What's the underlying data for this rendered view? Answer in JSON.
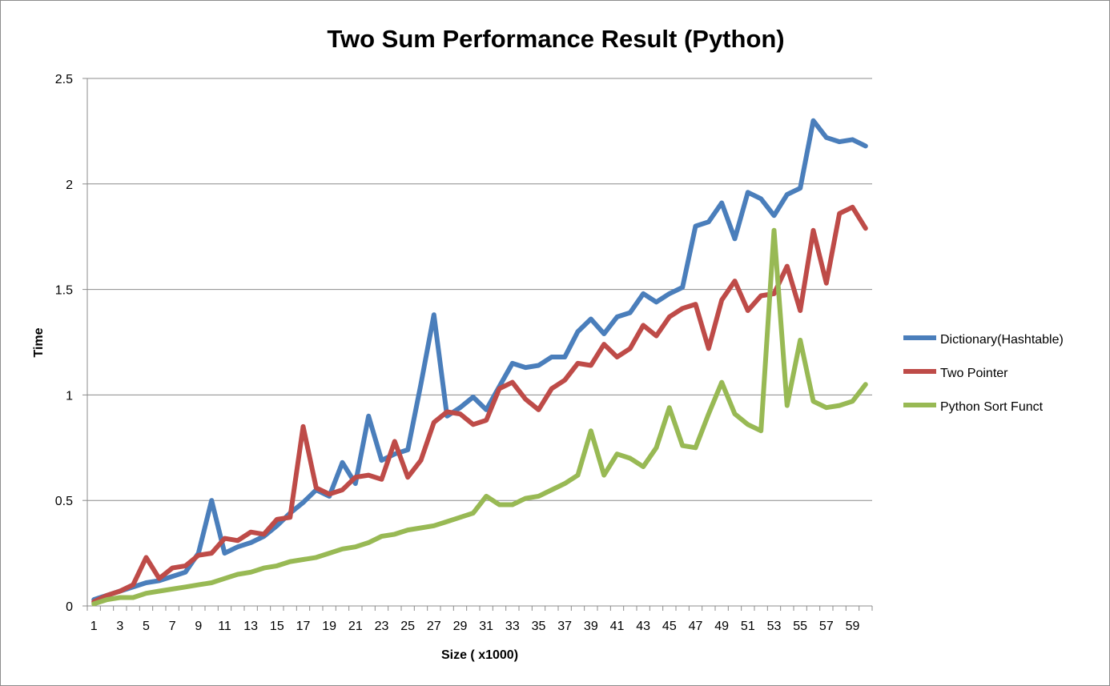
{
  "chart_data": {
    "type": "line",
    "title": "Two Sum Performance Result (Python)",
    "xlabel": "Size ( x1000)",
    "ylabel": "Time",
    "ylim": [
      0,
      2.5
    ],
    "yticks": [
      "0",
      "0.5",
      "1",
      "1.5",
      "2",
      "2.5"
    ],
    "x": [
      1,
      2,
      3,
      4,
      5,
      6,
      7,
      8,
      9,
      10,
      11,
      12,
      13,
      14,
      15,
      16,
      17,
      18,
      19,
      20,
      21,
      22,
      23,
      24,
      25,
      26,
      27,
      28,
      29,
      30,
      31,
      32,
      33,
      34,
      35,
      36,
      37,
      38,
      39,
      40,
      41,
      42,
      43,
      44,
      45,
      46,
      47,
      48,
      49,
      50,
      51,
      52,
      53,
      54,
      55,
      56,
      57,
      58,
      59,
      60
    ],
    "xtick_labels": [
      "1",
      "3",
      "5",
      "7",
      "9",
      "11",
      "13",
      "15",
      "17",
      "19",
      "21",
      "23",
      "25",
      "27",
      "29",
      "31",
      "33",
      "35",
      "37",
      "39",
      "41",
      "43",
      "45",
      "47",
      "49",
      "51",
      "53",
      "55",
      "57",
      "59"
    ],
    "grid": true,
    "legend_position": "right",
    "series": [
      {
        "name": "Dictionary(Hashtable)",
        "color": "#4a7ebb",
        "values": [
          0.03,
          0.05,
          0.07,
          0.09,
          0.11,
          0.12,
          0.14,
          0.16,
          0.25,
          0.5,
          0.25,
          0.28,
          0.3,
          0.33,
          0.38,
          0.44,
          0.49,
          0.55,
          0.52,
          0.68,
          0.58,
          0.9,
          0.69,
          0.72,
          0.74,
          1.05,
          1.38,
          0.9,
          0.94,
          0.99,
          0.93,
          1.04,
          1.15,
          1.13,
          1.14,
          1.18,
          1.18,
          1.3,
          1.36,
          1.29,
          1.37,
          1.39,
          1.48,
          1.44,
          1.48,
          1.51,
          1.8,
          1.82,
          1.91,
          1.74,
          1.96,
          1.93,
          1.85,
          1.95,
          1.98,
          2.3,
          2.22,
          2.2,
          2.21,
          2.18
        ]
      },
      {
        "name": "Two Pointer",
        "color": "#be4b48",
        "values": [
          0.02,
          0.05,
          0.07,
          0.1,
          0.23,
          0.13,
          0.18,
          0.19,
          0.24,
          0.25,
          0.32,
          0.31,
          0.35,
          0.34,
          0.41,
          0.42,
          0.85,
          0.56,
          0.53,
          0.55,
          0.61,
          0.62,
          0.6,
          0.78,
          0.61,
          0.69,
          0.87,
          0.92,
          0.91,
          0.86,
          0.88,
          1.03,
          1.06,
          0.98,
          0.93,
          1.03,
          1.07,
          1.15,
          1.14,
          1.24,
          1.18,
          1.22,
          1.33,
          1.28,
          1.37,
          1.41,
          1.43,
          1.22,
          1.45,
          1.54,
          1.4,
          1.47,
          1.48,
          1.61,
          1.4,
          1.78,
          1.53,
          1.86,
          1.89,
          1.79
        ]
      },
      {
        "name": "Python Sort Funct",
        "color": "#98b954",
        "values": [
          0.01,
          0.03,
          0.04,
          0.04,
          0.06,
          0.07,
          0.08,
          0.09,
          0.1,
          0.11,
          0.13,
          0.15,
          0.16,
          0.18,
          0.19,
          0.21,
          0.22,
          0.23,
          0.25,
          0.27,
          0.28,
          0.3,
          0.33,
          0.34,
          0.36,
          0.37,
          0.38,
          0.4,
          0.42,
          0.44,
          0.52,
          0.48,
          0.48,
          0.51,
          0.52,
          0.55,
          0.58,
          0.62,
          0.83,
          0.62,
          0.72,
          0.7,
          0.66,
          0.75,
          0.94,
          0.76,
          0.75,
          0.91,
          1.06,
          0.91,
          0.86,
          0.83,
          1.78,
          0.95,
          1.26,
          0.97,
          0.94,
          0.95,
          0.97,
          1.05
        ]
      }
    ]
  }
}
